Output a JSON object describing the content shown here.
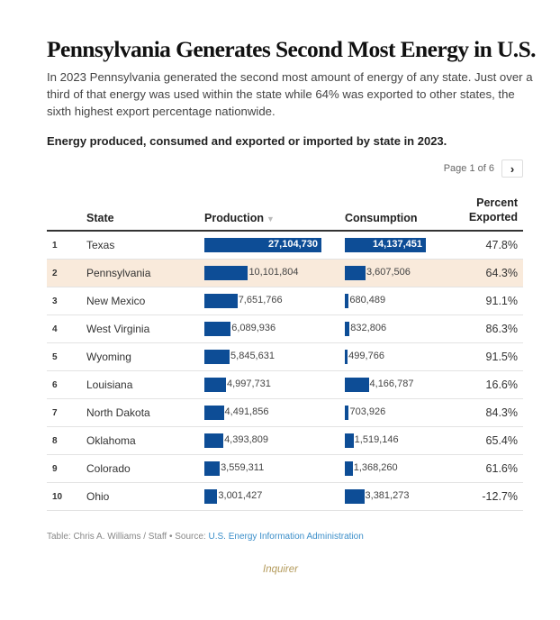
{
  "header": {
    "title": "Pennsylvania Generates Second Most Energy in U.S.",
    "description": "In 2023 Pennsylvania generated the second most amount of energy of any state. Just over a third of that energy was used within the state while 64% was exported to other states, the sixth highest export percentage nationwide.",
    "subtitle": "Energy produced, consumed and exported or imported by state in 2023."
  },
  "pager": {
    "label": "Page 1 of 6",
    "next_icon": "chevron-right-icon"
  },
  "colors": {
    "bar": "#0d4d96",
    "highlight_row": "#f9eadb",
    "source_link": "#3b8ec9"
  },
  "chart_data": {
    "type": "table",
    "columns": [
      "",
      "State",
      "Production",
      "Consumption",
      "Percent Exported"
    ],
    "sort": {
      "column": "Production",
      "order": "descending"
    },
    "highlighted_row": "Pennsylvania",
    "rows": [
      {
        "rank": "1",
        "state": "Texas",
        "production": 27104730,
        "production_label": "27,104,730",
        "consumption": 14137451,
        "consumption_label": "14,137,451",
        "pct": "47.8%"
      },
      {
        "rank": "2",
        "state": "Pennsylvania",
        "production": 10101804,
        "production_label": "10,101,804",
        "consumption": 3607506,
        "consumption_label": "3,607,506",
        "pct": "64.3%"
      },
      {
        "rank": "3",
        "state": "New Mexico",
        "production": 7651766,
        "production_label": "7,651,766",
        "consumption": 680489,
        "consumption_label": "680,489",
        "pct": "91.1%"
      },
      {
        "rank": "4",
        "state": "West Virginia",
        "production": 6089936,
        "production_label": "6,089,936",
        "consumption": 832806,
        "consumption_label": "832,806",
        "pct": "86.3%"
      },
      {
        "rank": "5",
        "state": "Wyoming",
        "production": 5845631,
        "production_label": "5,845,631",
        "consumption": 499766,
        "consumption_label": "499,766",
        "pct": "91.5%"
      },
      {
        "rank": "6",
        "state": "Louisiana",
        "production": 4997731,
        "production_label": "4,997,731",
        "consumption": 4166787,
        "consumption_label": "4,166,787",
        "pct": "16.6%"
      },
      {
        "rank": "7",
        "state": "North Dakota",
        "production": 4491856,
        "production_label": "4,491,856",
        "consumption": 703926,
        "consumption_label": "703,926",
        "pct": "84.3%"
      },
      {
        "rank": "8",
        "state": "Oklahoma",
        "production": 4393809,
        "production_label": "4,393,809",
        "consumption": 1519146,
        "consumption_label": "1,519,146",
        "pct": "65.4%"
      },
      {
        "rank": "9",
        "state": "Colorado",
        "production": 3559311,
        "production_label": "3,559,311",
        "consumption": 1368260,
        "consumption_label": "1,368,260",
        "pct": "61.6%"
      },
      {
        "rank": "10",
        "state": "Ohio",
        "production": 3001427,
        "production_label": "3,001,427",
        "consumption": 3381273,
        "consumption_label": "3,381,273",
        "pct": "-12.7%"
      }
    ]
  },
  "footer": {
    "credit": "Table: Chris A. Williams / Staff • Source: ",
    "source_link": "U.S. Energy Information Administration",
    "logo": "Inquirer"
  }
}
